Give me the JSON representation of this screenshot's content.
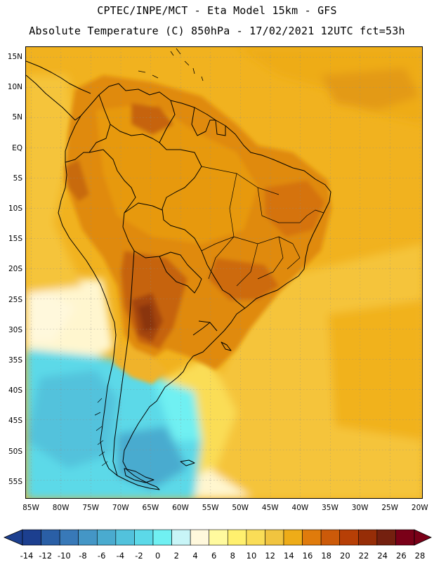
{
  "title_line1": "CPTEC/INPE/MCT -  Eta Model 15km - GFS",
  "title_line2": "Absolute Temperature (C) 850hPa - 17/02/2021 12UTC fct=53h",
  "lat_labels": [
    "15N",
    "10N",
    "5N",
    "EQ",
    "5S",
    "10S",
    "15S",
    "20S",
    "25S",
    "30S",
    "35S",
    "40S",
    "45S",
    "50S",
    "55S"
  ],
  "lon_labels": [
    "85W",
    "80W",
    "75W",
    "70W",
    "65W",
    "60W",
    "55W",
    "50W",
    "45W",
    "40W",
    "35W",
    "30W",
    "25W",
    "20W"
  ],
  "colorbar": {
    "colors": [
      "#1c3f8f",
      "#2a5fa6",
      "#3879b8",
      "#4496c6",
      "#4aabcf",
      "#52c2dc",
      "#5cd9e8",
      "#70f0f2",
      "#c8f5f7",
      "#fff8dc",
      "#fffa9e",
      "#fff06e",
      "#fadd57",
      "#f1c43f",
      "#eeac18",
      "#e07b0c",
      "#cc5a09",
      "#b73f06",
      "#962d07",
      "#74200f",
      "#7a0018"
    ],
    "labels": [
      "-14",
      "-12",
      "-10",
      "-8",
      "-6",
      "-4",
      "-2",
      "0",
      "2",
      "4",
      "6",
      "8",
      "10",
      "12",
      "14",
      "16",
      "18",
      "20",
      "22",
      "24",
      "26",
      "28"
    ]
  },
  "icons": {
    "left_arrow": "colorbar-left-arrow-icon",
    "right_arrow": "colorbar-right-arrow-icon"
  }
}
